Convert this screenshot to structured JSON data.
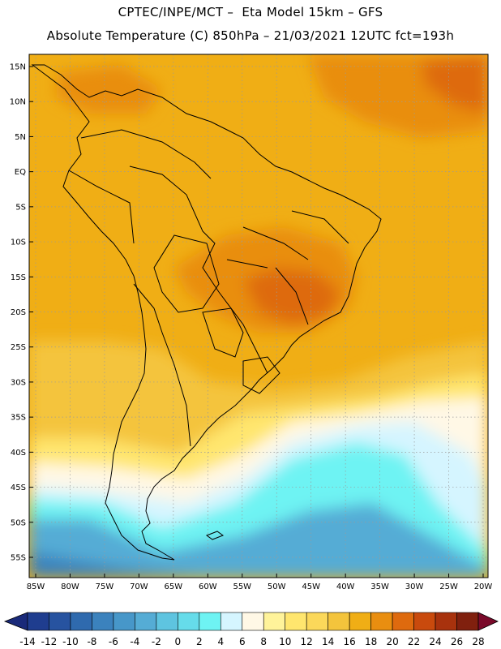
{
  "header": {
    "line1": "CPTEC/INPE/MCT –  Eta Model 15km – GFS",
    "line2": "Absolute Temperature (C) 850hPa – 21/03/2021 12UTC fct=193h"
  },
  "axes": {
    "lat_labels": [
      "15N",
      "10N",
      "5N",
      "EQ",
      "5S",
      "10S",
      "15S",
      "20S",
      "25S",
      "30S",
      "35S",
      "40S",
      "45S",
      "50S",
      "55S"
    ],
    "lon_labels": [
      "85W",
      "80W",
      "75W",
      "70W",
      "65W",
      "60W",
      "55W",
      "50W",
      "45W",
      "40W",
      "35W",
      "30W",
      "25W",
      "20W"
    ]
  },
  "colorbar": {
    "labels": [
      "-14",
      "-12",
      "-10",
      "-8",
      "-6",
      "-4",
      "-2",
      "0",
      "2",
      "4",
      "6",
      "8",
      "10",
      "12",
      "14",
      "16",
      "18",
      "20",
      "22",
      "24",
      "26",
      "28"
    ],
    "colors": [
      "#1f3d8f",
      "#2753a0",
      "#2f6aae",
      "#3b82bd",
      "#4797c9",
      "#55acd5",
      "#5ec4e0",
      "#66dcea",
      "#6ef3f3",
      "#d5f5ff",
      "#fff8e6",
      "#fff39a",
      "#ffe66e",
      "#fbd85a",
      "#f4c43c",
      "#f0ae15",
      "#e98e10",
      "#de6a0e",
      "#c94a0d",
      "#a8320d",
      "#80200e"
    ],
    "left_arrow_color": "#1a2a7a",
    "right_arrow_color": "#7a0a2a"
  },
  "map_colors": {
    "warm": "#f0ae15",
    "warmer": "#e98e10",
    "hot": "#de6a0e",
    "mild": "#f4c43c",
    "cool": "#ffe66e",
    "cream": "#fff8e6",
    "pale": "#d5f5ff",
    "cyan": "#6ef3f3",
    "teal": "#55acd5",
    "blue": "#3b82bd",
    "grid": "#9a9a9a",
    "coast": "#000000"
  }
}
